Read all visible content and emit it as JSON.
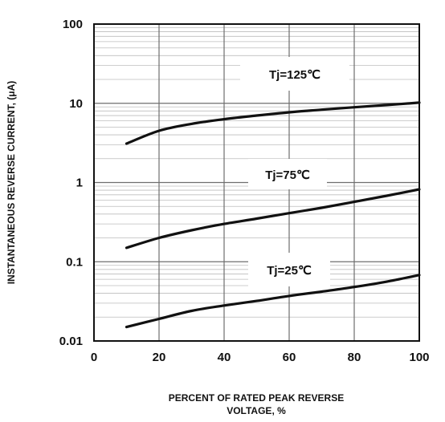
{
  "chart_data": {
    "type": "line",
    "title": "",
    "xlabel_lines": [
      "PERCENT OF RATED PEAK REVERSE",
      "VOLTAGE, %"
    ],
    "ylabel": "INSTANTANEOUS REVERSE CURRENT, (μA)",
    "xlim": [
      0,
      100
    ],
    "ylim": [
      0.01,
      100
    ],
    "yscale": "log",
    "grid": true,
    "x_ticks": [
      "0",
      "20",
      "40",
      "60",
      "80",
      "100"
    ],
    "y_ticks": [
      "0.01",
      "0.1",
      "1",
      "10",
      "100"
    ],
    "x": [
      10,
      20,
      30,
      40,
      50,
      60,
      70,
      80,
      90,
      100
    ],
    "series": [
      {
        "name": "Tj=125℃",
        "values": [
          3.1,
          4.5,
          5.5,
          6.3,
          7.0,
          7.7,
          8.3,
          8.9,
          9.5,
          10.2
        ]
      },
      {
        "name": "Tj=75℃",
        "values": [
          0.15,
          0.2,
          0.25,
          0.3,
          0.35,
          0.41,
          0.48,
          0.57,
          0.68,
          0.82
        ]
      },
      {
        "name": "Tj=25℃",
        "values": [
          0.015,
          0.019,
          0.024,
          0.028,
          0.032,
          0.037,
          0.042,
          0.048,
          0.056,
          0.068
        ]
      }
    ]
  },
  "colors": {
    "curve": "#111111",
    "grid_major": "#6e6e6e",
    "grid_minor": "#bdbdbd",
    "frame": "#111111"
  }
}
